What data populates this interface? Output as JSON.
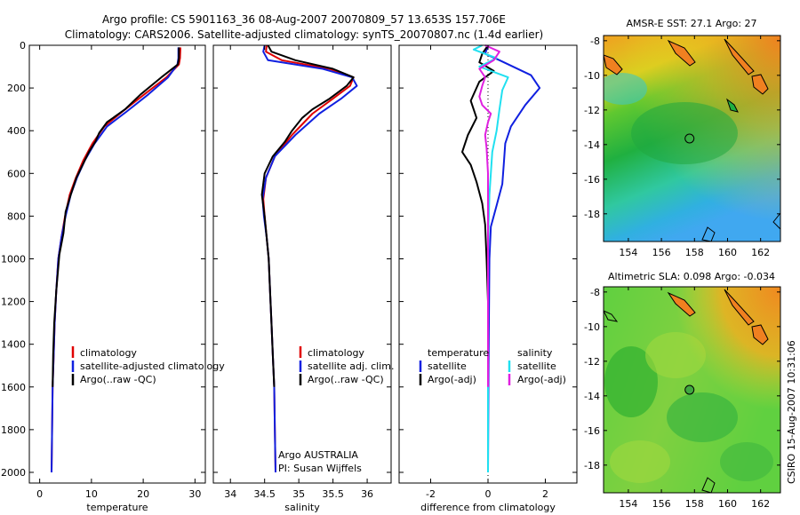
{
  "header": {
    "line1": "Argo profile: CS 5901163_36 08-Aug-2007 20070809_57 13.653S 157.706E",
    "line2": "Climatology: CARS2006. Satellite-adjusted climatology: synTS_20070807.nc (1.4d earlier)"
  },
  "colors": {
    "climatology": "#e00000",
    "satellite": "#1020e0",
    "argo": "#000000",
    "sat_salinity": "#20e0f0",
    "argo_salinity": "#e020e0"
  },
  "side_text": "CSIRO 15-Aug-2007 10:31:06",
  "chart_data": [
    {
      "id": "temperature",
      "type": "line",
      "xlabel": "temperature",
      "xlim": [
        -2,
        32
      ],
      "ylim": [
        0,
        2050
      ],
      "xticks": [
        0,
        10,
        20,
        30
      ],
      "yticks": [
        0,
        200,
        400,
        600,
        800,
        1000,
        1200,
        1400,
        1600,
        1800,
        2000
      ],
      "legend": [
        "climatology",
        "satellite-adjusted climatology",
        "Argo(..raw -QC)"
      ],
      "annotations": [],
      "series": [
        {
          "name": "climatology",
          "color": "#e00000",
          "points": [
            [
              27.2,
              10
            ],
            [
              27.1,
              60
            ],
            [
              26.9,
              90
            ],
            [
              24.5,
              150
            ],
            [
              20.2,
              230
            ],
            [
              16,
              310
            ],
            [
              12.5,
              380
            ],
            [
              10.2,
              460
            ],
            [
              8.4,
              540
            ],
            [
              7,
              620
            ],
            [
              5.8,
              700
            ],
            [
              4.9,
              800
            ],
            [
              4.2,
              900
            ],
            [
              3.6,
              1000
            ],
            [
              3.2,
              1150
            ],
            [
              2.9,
              1300
            ],
            [
              2.7,
              1450
            ],
            [
              2.5,
              1600
            ],
            [
              2.4,
              1800
            ],
            [
              2.3,
              2000
            ]
          ]
        },
        {
          "name": "satellite",
          "color": "#1020e0",
          "points": [
            [
              26.8,
              10
            ],
            [
              26.8,
              60
            ],
            [
              26.6,
              90
            ],
            [
              24.8,
              150
            ],
            [
              21,
              230
            ],
            [
              16.8,
              310
            ],
            [
              13,
              380
            ],
            [
              10.6,
              460
            ],
            [
              8.7,
              540
            ],
            [
              7.2,
              620
            ],
            [
              6,
              700
            ],
            [
              5,
              800
            ],
            [
              4.2,
              900
            ],
            [
              3.6,
              1000
            ],
            [
              3.2,
              1150
            ],
            [
              2.9,
              1300
            ],
            [
              2.7,
              1450
            ],
            [
              2.5,
              1600
            ],
            [
              2.4,
              1800
            ],
            [
              2.3,
              2000
            ]
          ]
        },
        {
          "name": "Argo",
          "color": "#000000",
          "points": [
            [
              26.9,
              10
            ],
            [
              26.9,
              60
            ],
            [
              26.7,
              90
            ],
            [
              23.5,
              150
            ],
            [
              19.5,
              230
            ],
            [
              16.5,
              300
            ],
            [
              13,
              360
            ],
            [
              11.5,
              410
            ],
            [
              10.8,
              450
            ],
            [
              9.5,
              500
            ],
            [
              8.5,
              550
            ],
            [
              7.1,
              620
            ],
            [
              6,
              700
            ],
            [
              5,
              780
            ],
            [
              4.6,
              880
            ],
            [
              3.8,
              980
            ],
            [
              3.2,
              1150
            ],
            [
              2.8,
              1300
            ],
            [
              2.6,
              1450
            ],
            [
              2.5,
              1600
            ]
          ]
        }
      ]
    },
    {
      "id": "salinity",
      "type": "line",
      "xlabel": "salinity",
      "xlim": [
        33.75,
        36.35
      ],
      "ylim": [
        0,
        2050
      ],
      "xticks": [
        34,
        34.5,
        35,
        35.5,
        36
      ],
      "yticks": [
        0,
        200,
        400,
        600,
        800,
        1000,
        1200,
        1400,
        1600,
        1800,
        2000
      ],
      "legend": [
        "climatology",
        "satellite adj. clim.",
        "Argo(..raw -QC)"
      ],
      "annotations": [
        "Argo AUSTRALIA",
        "PI: Susan Wijffels"
      ],
      "series": [
        {
          "name": "climatology",
          "color": "#e00000",
          "points": [
            [
              34.53,
              0
            ],
            [
              34.52,
              30
            ],
            [
              34.75,
              70
            ],
            [
              35.45,
              110
            ],
            [
              35.8,
              150
            ],
            [
              35.75,
              190
            ],
            [
              35.5,
              250
            ],
            [
              35.2,
              320
            ],
            [
              34.9,
              420
            ],
            [
              34.65,
              520
            ],
            [
              34.52,
              620
            ],
            [
              34.48,
              720
            ],
            [
              34.5,
              800
            ],
            [
              34.53,
              900
            ],
            [
              34.56,
              1000
            ],
            [
              34.58,
              1150
            ],
            [
              34.6,
              1300
            ],
            [
              34.62,
              1450
            ],
            [
              34.64,
              1600
            ],
            [
              34.65,
              1800
            ],
            [
              34.66,
              2000
            ]
          ]
        },
        {
          "name": "satellite",
          "color": "#1020e0",
          "points": [
            [
              34.5,
              0
            ],
            [
              34.48,
              30
            ],
            [
              34.55,
              70
            ],
            [
              35.35,
              110
            ],
            [
              35.78,
              150
            ],
            [
              35.85,
              190
            ],
            [
              35.62,
              250
            ],
            [
              35.3,
              320
            ],
            [
              34.95,
              420
            ],
            [
              34.65,
              520
            ],
            [
              34.52,
              620
            ],
            [
              34.47,
              720
            ],
            [
              34.49,
              800
            ],
            [
              34.53,
              900
            ],
            [
              34.56,
              1000
            ],
            [
              34.58,
              1150
            ],
            [
              34.6,
              1300
            ],
            [
              34.62,
              1450
            ],
            [
              34.64,
              1600
            ],
            [
              34.65,
              1800
            ],
            [
              34.66,
              2000
            ]
          ]
        },
        {
          "name": "Argo",
          "color": "#000000",
          "points": [
            [
              34.55,
              0
            ],
            [
              34.6,
              30
            ],
            [
              34.95,
              70
            ],
            [
              35.5,
              110
            ],
            [
              35.8,
              150
            ],
            [
              35.7,
              190
            ],
            [
              35.45,
              250
            ],
            [
              35.2,
              300
            ],
            [
              35.05,
              340
            ],
            [
              34.9,
              400
            ],
            [
              34.8,
              450
            ],
            [
              34.62,
              520
            ],
            [
              34.5,
              600
            ],
            [
              34.46,
              700
            ],
            [
              34.5,
              800
            ],
            [
              34.53,
              900
            ],
            [
              34.56,
              1000
            ],
            [
              34.58,
              1150
            ],
            [
              34.6,
              1300
            ],
            [
              34.62,
              1450
            ],
            [
              34.64,
              1600
            ]
          ]
        }
      ]
    },
    {
      "id": "difference",
      "type": "line",
      "xlabel": "difference from climatology",
      "xlim": [
        -3.1,
        3.1
      ],
      "ylim": [
        0,
        2050
      ],
      "xticks": [
        -2,
        0,
        2
      ],
      "yticks": [
        0,
        200,
        400,
        600,
        800,
        1000,
        1200,
        1400,
        1600,
        1800,
        2000
      ],
      "legend_temperature": {
        "title": "temperature",
        "items": [
          "satellite",
          "Argo(-adj)"
        ]
      },
      "legend_salinity": {
        "title": "salinity",
        "items": [
          "satellite",
          "Argo(-adj)"
        ]
      },
      "annotations": [],
      "series": [
        {
          "name": "temperature satellite",
          "color": "#1020e0",
          "points": [
            [
              0,
              0
            ],
            [
              -0.1,
              40
            ],
            [
              0.4,
              70
            ],
            [
              1.5,
              140
            ],
            [
              1.8,
              200
            ],
            [
              1.3,
              280
            ],
            [
              0.8,
              380
            ],
            [
              0.6,
              460
            ],
            [
              0.55,
              560
            ],
            [
              0.5,
              650
            ],
            [
              0.3,
              750
            ],
            [
              0.1,
              850
            ],
            [
              0.05,
              1000
            ],
            [
              0.02,
              1500
            ],
            [
              0,
              2000
            ]
          ]
        },
        {
          "name": "temperature Argo(-adj)",
          "color": "#000000",
          "points": [
            [
              0,
              0
            ],
            [
              -0.2,
              40
            ],
            [
              -0.3,
              80
            ],
            [
              0.2,
              120
            ],
            [
              -0.3,
              170
            ],
            [
              -0.6,
              260
            ],
            [
              -0.4,
              340
            ],
            [
              -0.7,
              420
            ],
            [
              -0.9,
              500
            ],
            [
              -0.6,
              560
            ],
            [
              -0.4,
              640
            ],
            [
              -0.2,
              740
            ],
            [
              -0.1,
              840
            ],
            [
              -0.05,
              1000
            ],
            [
              0,
              1200
            ],
            [
              0,
              1600
            ]
          ]
        },
        {
          "name": "salinity satellite",
          "color": "#20e0f0",
          "points": [
            [
              -0.2,
              0
            ],
            [
              -0.5,
              20
            ],
            [
              0.3,
              60
            ],
            [
              -0.3,
              100
            ],
            [
              0.7,
              150
            ],
            [
              0.5,
              210
            ],
            [
              0.4,
              300
            ],
            [
              0.3,
              400
            ],
            [
              0.15,
              500
            ],
            [
              0.1,
              600
            ],
            [
              0.05,
              700
            ],
            [
              0.02,
              850
            ],
            [
              0,
              1000
            ],
            [
              0,
              2000
            ]
          ]
        },
        {
          "name": "salinity Argo(-adj)",
          "color": "#e020e0",
          "points": [
            [
              -0.1,
              0
            ],
            [
              0.4,
              30
            ],
            [
              0.2,
              70
            ],
            [
              -0.3,
              110
            ],
            [
              -0.1,
              150
            ],
            [
              -0.2,
              190
            ],
            [
              -0.3,
              240
            ],
            [
              -0.2,
              280
            ],
            [
              0.1,
              320
            ],
            [
              0,
              360
            ],
            [
              -0.1,
              420
            ],
            [
              -0.05,
              480
            ],
            [
              0,
              600
            ],
            [
              0,
              1500
            ],
            [
              0,
              1600
            ]
          ]
        }
      ]
    },
    {
      "id": "sst_map",
      "type": "heatmap",
      "title": "AMSR-E SST: 27.1 Argo: 27",
      "xlim": [
        152.5,
        163.2
      ],
      "ylim": [
        -19.6,
        -7.7
      ],
      "xticks": [
        154,
        156,
        158,
        160,
        162
      ],
      "yticks": [
        -8,
        -10,
        -12,
        -14,
        -16,
        -18
      ],
      "argo_position": [
        157.7,
        -13.65
      ]
    },
    {
      "id": "sla_map",
      "type": "heatmap",
      "title": "Altimetric SLA: 0.098 Argo: -0.034",
      "xlim": [
        152.5,
        163.2
      ],
      "ylim": [
        -19.6,
        -7.7
      ],
      "xticks": [
        154,
        156,
        158,
        160,
        162
      ],
      "yticks": [
        -8,
        -10,
        -12,
        -14,
        -16,
        -18
      ],
      "argo_position": [
        157.7,
        -13.65
      ]
    }
  ]
}
